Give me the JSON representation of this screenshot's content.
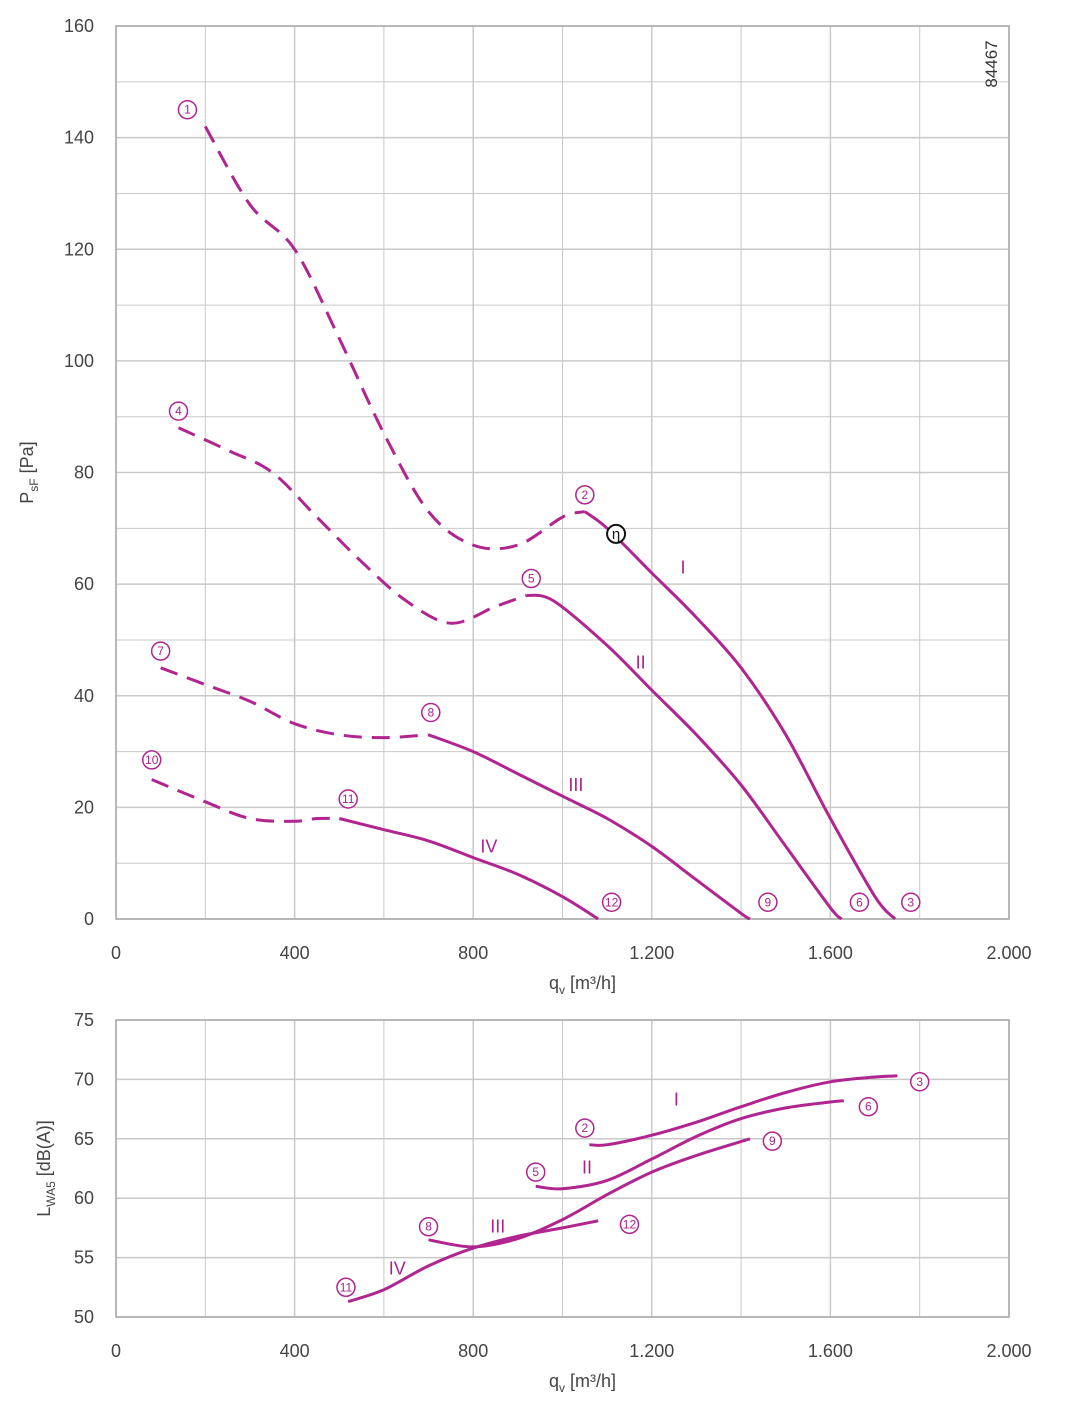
{
  "chart_data": [
    {
      "type": "line",
      "chart_code": "84467",
      "xlabel": "q_v [m³/h]",
      "ylabel": "P_sF [Pa]",
      "xlim": [
        0,
        2000
      ],
      "ylim": [
        0,
        160
      ],
      "x_ticks": [
        0,
        400,
        800,
        1200,
        1600,
        2000
      ],
      "x_tick_labels": [
        "0",
        "400",
        "800",
        "1.200",
        "1.600",
        "2.000"
      ],
      "y_ticks": [
        0,
        20,
        40,
        60,
        80,
        100,
        120,
        140,
        160
      ],
      "y_tick_labels": [
        "0",
        "20",
        "40",
        "60",
        "80",
        "100",
        "120",
        "140",
        "160"
      ],
      "grid": true,
      "curve_color": "#b0258f",
      "series": [
        {
          "name": "I",
          "dashed": [
            [
              200,
              142
            ],
            [
              300,
              128
            ],
            [
              400,
              120
            ],
            [
              500,
              104
            ],
            [
              600,
              87
            ],
            [
              700,
              73
            ],
            [
              800,
              67
            ],
            [
              900,
              67
            ],
            [
              1000,
              72
            ],
            [
              1050,
              73
            ]
          ],
          "solid": [
            [
              1050,
              73
            ],
            [
              1100,
              70
            ],
            [
              1200,
              62
            ],
            [
              1300,
              54
            ],
            [
              1400,
              45
            ],
            [
              1500,
              33
            ],
            [
              1600,
              18
            ],
            [
              1700,
              4
            ],
            [
              1745,
              0
            ]
          ]
        },
        {
          "name": "II",
          "dashed": [
            [
              140,
              88
            ],
            [
              250,
              84
            ],
            [
              350,
              80
            ],
            [
              450,
              72
            ],
            [
              550,
              64
            ],
            [
              650,
              57
            ],
            [
              750,
              53
            ],
            [
              850,
              56
            ],
            [
              920,
              58
            ]
          ],
          "solid": [
            [
              920,
              58
            ],
            [
              980,
              57
            ],
            [
              1100,
              49
            ],
            [
              1200,
              41
            ],
            [
              1300,
              33
            ],
            [
              1400,
              24
            ],
            [
              1500,
              13
            ],
            [
              1600,
              2
            ],
            [
              1625,
              0
            ]
          ]
        },
        {
          "name": "III",
          "dashed": [
            [
              100,
              45
            ],
            [
              200,
              42
            ],
            [
              300,
              39
            ],
            [
              400,
              35
            ],
            [
              500,
              33
            ],
            [
              600,
              32.5
            ],
            [
              700,
              33
            ]
          ],
          "solid": [
            [
              700,
              33
            ],
            [
              800,
              30
            ],
            [
              900,
              26
            ],
            [
              1000,
              22
            ],
            [
              1100,
              18
            ],
            [
              1200,
              13
            ],
            [
              1300,
              7
            ],
            [
              1400,
              1
            ],
            [
              1420,
              0
            ]
          ]
        },
        {
          "name": "IV",
          "dashed": [
            [
              80,
              25
            ],
            [
              200,
              21
            ],
            [
              300,
              18
            ],
            [
              400,
              17.5
            ],
            [
              450,
              18
            ],
            [
              500,
              18
            ]
          ],
          "solid": [
            [
              500,
              18
            ],
            [
              600,
              16
            ],
            [
              700,
              14
            ],
            [
              800,
              11
            ],
            [
              900,
              8
            ],
            [
              1000,
              4
            ],
            [
              1080,
              0
            ]
          ]
        }
      ],
      "series_labels": [
        {
          "text": "I",
          "x": 1270,
          "y": 63
        },
        {
          "text": "II",
          "x": 1175,
          "y": 46
        },
        {
          "text": "III",
          "x": 1030,
          "y": 24
        },
        {
          "text": "IV",
          "x": 835,
          "y": 13
        }
      ],
      "point_markers": [
        {
          "text": "1",
          "x": 160,
          "y": 145
        },
        {
          "text": "2",
          "x": 1050,
          "y": 76
        },
        {
          "text": "3",
          "x": 1780,
          "y": 3
        },
        {
          "text": "4",
          "x": 140,
          "y": 91
        },
        {
          "text": "5",
          "x": 930,
          "y": 61
        },
        {
          "text": "6",
          "x": 1665,
          "y": 3
        },
        {
          "text": "7",
          "x": 100,
          "y": 48
        },
        {
          "text": "8",
          "x": 705,
          "y": 37
        },
        {
          "text": "9",
          "x": 1460,
          "y": 3
        },
        {
          "text": "10",
          "x": 80,
          "y": 28.5
        },
        {
          "text": "11",
          "x": 520,
          "y": 21.5
        },
        {
          "text": "12",
          "x": 1110,
          "y": 3
        }
      ],
      "eta_marker": {
        "text": "η",
        "x": 1120,
        "y": 69
      }
    },
    {
      "type": "line",
      "xlabel": "q_v [m³/h]",
      "ylabel": "L_WA5 [dB(A)]",
      "xlim": [
        0,
        2000
      ],
      "ylim": [
        50,
        75
      ],
      "x_ticks": [
        0,
        400,
        800,
        1200,
        1600,
        2000
      ],
      "x_tick_labels": [
        "0",
        "400",
        "800",
        "1.200",
        "1.600",
        "2.000"
      ],
      "y_ticks": [
        50,
        55,
        60,
        65,
        70,
        75
      ],
      "y_tick_labels": [
        "50",
        "55",
        "60",
        "65",
        "70",
        "75"
      ],
      "grid": true,
      "curve_color": "#b0258f",
      "series": [
        {
          "name": "I",
          "solid": [
            [
              1060,
              64.5
            ],
            [
              1100,
              64.5
            ],
            [
              1200,
              65.3
            ],
            [
              1300,
              66.4
            ],
            [
              1400,
              67.7
            ],
            [
              1500,
              68.9
            ],
            [
              1600,
              69.8
            ],
            [
              1700,
              70.2
            ],
            [
              1750,
              70.3
            ]
          ]
        },
        {
          "name": "II",
          "solid": [
            [
              940,
              61
            ],
            [
              1000,
              60.8
            ],
            [
              1100,
              61.5
            ],
            [
              1200,
              63.3
            ],
            [
              1300,
              65.2
            ],
            [
              1400,
              66.7
            ],
            [
              1500,
              67.6
            ],
            [
              1600,
              68.1
            ],
            [
              1630,
              68.2
            ]
          ]
        },
        {
          "name": "III",
          "solid": [
            [
              700,
              56.5
            ],
            [
              800,
              55.9
            ],
            [
              900,
              56.6
            ],
            [
              1000,
              58.2
            ],
            [
              1100,
              60.3
            ],
            [
              1200,
              62.2
            ],
            [
              1300,
              63.6
            ],
            [
              1420,
              65
            ]
          ]
        },
        {
          "name": "IV",
          "solid": [
            [
              520,
              51.3
            ],
            [
              600,
              52.3
            ],
            [
              700,
              54.3
            ],
            [
              800,
              55.8
            ],
            [
              900,
              56.8
            ],
            [
              1000,
              57.5
            ],
            [
              1080,
              58.1
            ]
          ]
        }
      ],
      "series_labels": [
        {
          "text": "I",
          "x": 1255,
          "y": 68.3
        },
        {
          "text": "II",
          "x": 1055,
          "y": 62.6
        },
        {
          "text": "III",
          "x": 855,
          "y": 57.6
        },
        {
          "text": "IV",
          "x": 630,
          "y": 54.1
        }
      ],
      "point_markers": [
        {
          "text": "2",
          "x": 1050,
          "y": 65.9
        },
        {
          "text": "3",
          "x": 1800,
          "y": 69.8
        },
        {
          "text": "5",
          "x": 940,
          "y": 62.2
        },
        {
          "text": "6",
          "x": 1685,
          "y": 67.7
        },
        {
          "text": "8",
          "x": 700,
          "y": 57.6
        },
        {
          "text": "9",
          "x": 1470,
          "y": 64.8
        },
        {
          "text": "11",
          "x": 515,
          "y": 52.5
        },
        {
          "text": "12",
          "x": 1150,
          "y": 57.8
        }
      ]
    }
  ]
}
